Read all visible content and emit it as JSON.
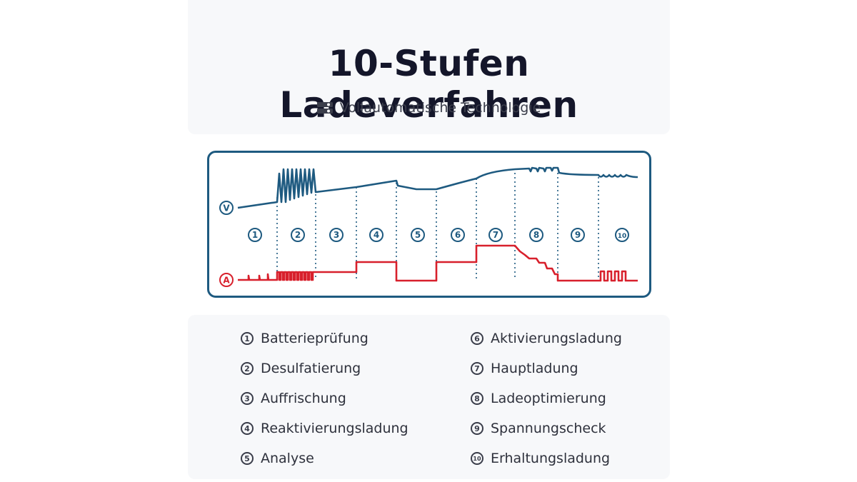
{
  "header": {
    "title": "10-Stufen Ladeverfahren",
    "subtitle": "Vollautomatische Technologie",
    "subtitle_icon": "toggle-switches-icon"
  },
  "diagram": {
    "voltage_label": "V",
    "current_label": "A",
    "voltage_color": "#1e5a80",
    "current_color": "#d8202c",
    "divider_color": "#1e5a80",
    "stages": [
      "1",
      "2",
      "3",
      "4",
      "5",
      "6",
      "7",
      "8",
      "9",
      "10"
    ]
  },
  "legend": {
    "items": [
      {
        "num": "1",
        "label": "Batterieprüfung"
      },
      {
        "num": "2",
        "label": "Desulfatierung"
      },
      {
        "num": "3",
        "label": "Auffrischung"
      },
      {
        "num": "4",
        "label": "Reaktivierungsladung"
      },
      {
        "num": "5",
        "label": "Analyse"
      },
      {
        "num": "6",
        "label": "Aktivierungsladung"
      },
      {
        "num": "7",
        "label": "Hauptladung"
      },
      {
        "num": "8",
        "label": "Ladeoptimierung"
      },
      {
        "num": "9",
        "label": "Spannungscheck"
      },
      {
        "num": "10",
        "label": "Erhaltungsladung"
      }
    ]
  }
}
